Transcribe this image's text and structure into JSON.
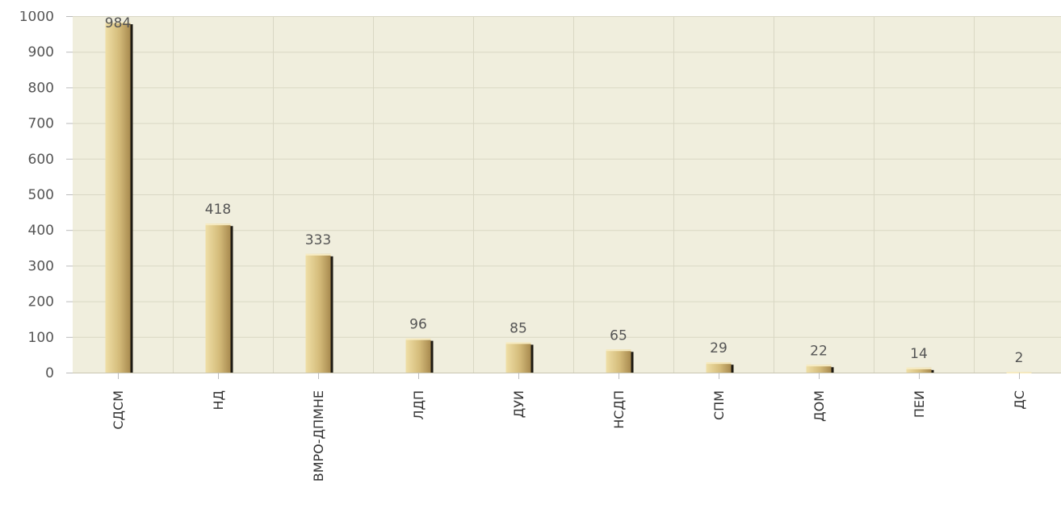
{
  "chart_data": {
    "type": "bar",
    "title": "",
    "xlabel": "",
    "ylabel": "",
    "categories": [
      "СДСМ",
      "НД",
      "ВМРО-ДПМНЕ",
      "ЛДП",
      "ДУИ",
      "НСДП",
      "СПМ",
      "ДОМ",
      "ПЕИ",
      "ДС"
    ],
    "values": [
      984,
      418,
      333,
      96,
      85,
      65,
      29,
      22,
      14,
      2
    ],
    "data_labels": [
      "984",
      "418",
      "333",
      "96",
      "85",
      "65",
      "29",
      "22",
      "14",
      "2"
    ],
    "yticks": [
      0,
      100,
      200,
      300,
      400,
      500,
      600,
      700,
      800,
      900,
      1000
    ],
    "ylim": [
      0,
      1000
    ],
    "grid": true,
    "legend": "none",
    "colors": {
      "plot_background": "#f0eedd",
      "grid": "#d9d7c4",
      "bar_light": "#efdfa6",
      "bar_mid": "#d4bb7a",
      "bar_dark": "#a88a4f",
      "bar_shadow": "#1e1a12",
      "axis_text": "#555555"
    }
  }
}
